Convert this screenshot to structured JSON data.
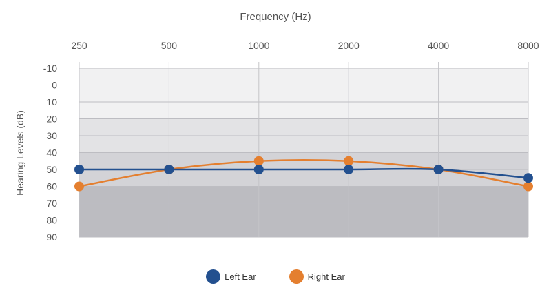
{
  "chart_data": {
    "type": "line",
    "xlabel": "Frequency (Hz)",
    "ylabel": "Hearing Levels (dB)",
    "categories": [
      "250",
      "500",
      "1000",
      "2000",
      "4000",
      "8000"
    ],
    "y_ticks": [
      "-10",
      "0",
      "10",
      "20",
      "30",
      "40",
      "50",
      "60",
      "70",
      "80",
      "90"
    ],
    "ylim": [
      -10,
      90
    ],
    "y_reversed": true,
    "x_axis_position": "top",
    "grid": true,
    "bands": [
      {
        "from": -10,
        "to": 20,
        "color": "#f1f1f2"
      },
      {
        "from": 20,
        "to": 40,
        "color": "#e3e3e5"
      },
      {
        "from": 40,
        "to": 60,
        "color": "#d3d3d7"
      },
      {
        "from": 60,
        "to": 90,
        "color": "#bcbcc1"
      }
    ],
    "series": [
      {
        "name": "Left Ear",
        "color": "#23508f",
        "values": [
          50,
          50,
          50,
          50,
          50,
          55
        ]
      },
      {
        "name": "Right Ear",
        "color": "#e47f2f",
        "values": [
          60,
          50,
          45,
          45,
          50,
          60
        ]
      }
    ],
    "legend_position": "bottom-center"
  }
}
